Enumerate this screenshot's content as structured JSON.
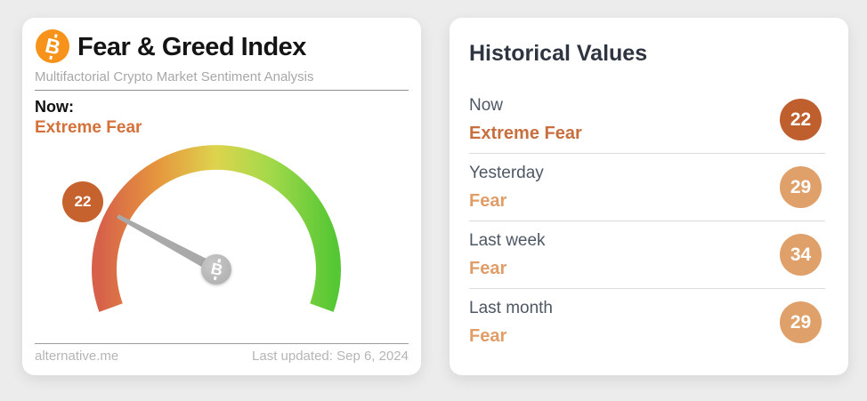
{
  "page": {
    "background_color": "#ececec"
  },
  "fear_greed_card": {
    "logo_icon": "bitcoin-icon",
    "logo_color": "#f7931a",
    "title": "Fear & Greed Index",
    "subtitle": "Multifactorial Crypto Market Sentiment Analysis",
    "now_label": "Now:",
    "now_sentiment": "Extreme Fear",
    "now_sentiment_color": "#d4713a",
    "gauge": {
      "value": 22,
      "min": 0,
      "max": 100,
      "angle_min": -110,
      "angle_max": 110,
      "badge_color": "#c5622d",
      "needle_color": "#a9a9a9",
      "hub_icon": "bitcoin-icon",
      "arc_colors": [
        "#d6604a",
        "#e6963e",
        "#ddd44d",
        "#a3d94a",
        "#56c734"
      ]
    },
    "footer": {
      "source": "alternative.me",
      "last_updated": "Last updated: Sep 6, 2024"
    }
  },
  "historical_card": {
    "title": "Historical Values",
    "rows": [
      {
        "label": "Now",
        "sentiment": "Extreme Fear",
        "value": "22",
        "sentiment_color": "#c76f3f",
        "badge_color": "#bf5f2e"
      },
      {
        "label": "Yesterday",
        "sentiment": "Fear",
        "value": "29",
        "sentiment_color": "#e09d68",
        "badge_color": "#dfa06a"
      },
      {
        "label": "Last week",
        "sentiment": "Fear",
        "value": "34",
        "sentiment_color": "#e09d68",
        "badge_color": "#dfa06a"
      },
      {
        "label": "Last month",
        "sentiment": "Fear",
        "value": "29",
        "sentiment_color": "#e09d68",
        "badge_color": "#dfa06a"
      }
    ]
  },
  "chart_data": {
    "type": "gauge",
    "title": "Fear & Greed Index",
    "value": 22,
    "range": [
      0,
      100
    ],
    "classification": "Extreme Fear",
    "scale_colors": "red (extreme fear) to green (extreme greed)",
    "historical": [
      {
        "period": "Now",
        "value": 22,
        "classification": "Extreme Fear"
      },
      {
        "period": "Yesterday",
        "value": 29,
        "classification": "Fear"
      },
      {
        "period": "Last week",
        "value": 34,
        "classification": "Fear"
      },
      {
        "period": "Last month",
        "value": 29,
        "classification": "Fear"
      }
    ]
  }
}
